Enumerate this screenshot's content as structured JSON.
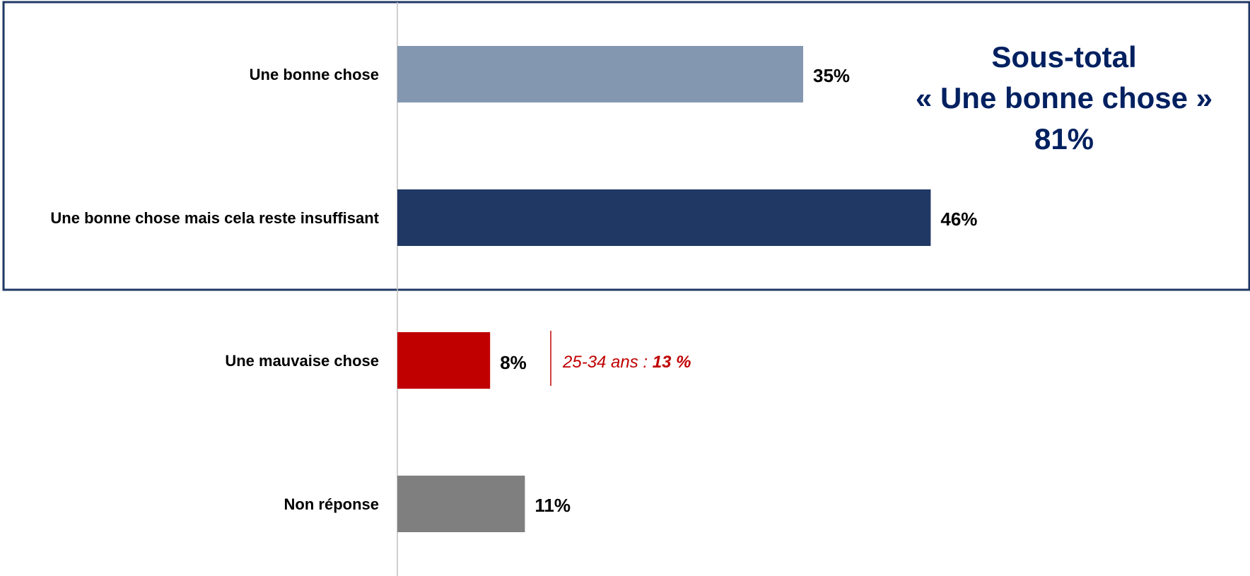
{
  "chart_data": {
    "type": "bar",
    "orientation": "horizontal",
    "categories": [
      "Une bonne chose",
      "Une bonne chose mais cela reste insuffisant",
      "Une mauvaise chose",
      "Non réponse"
    ],
    "values": [
      35,
      46,
      8,
      11
    ],
    "value_labels": [
      "35%",
      "46%",
      "8%",
      "11%"
    ],
    "unit": "%",
    "xlim": [
      0,
      100
    ],
    "grid": false,
    "legend": "none",
    "colors": [
      "#8497B0",
      "#203864",
      "#C00000",
      "#7F7F7F"
    ],
    "subtotal": {
      "line1": "Sous-total",
      "line2": "« Une bonne chose »",
      "value": "81%",
      "color": "#002060",
      "frame_color": "#1F3864",
      "groups": [
        "Une bonne chose",
        "Une bonne chose mais cela reste insuffisant"
      ]
    },
    "annotation": {
      "category": "Une mauvaise chose",
      "prefix": "25-34 ans : ",
      "value": "13 %",
      "color": "#C00000"
    }
  }
}
